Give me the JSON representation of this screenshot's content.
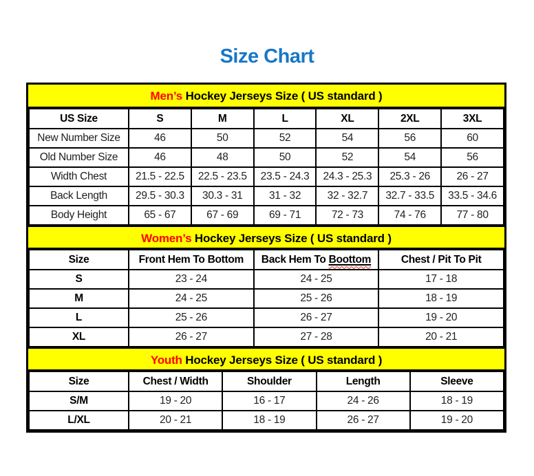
{
  "page": {
    "title": "Size Chart"
  },
  "colors": {
    "title_blue": "#1777c6",
    "accent_red": "#ff0000",
    "band_yellow": "#ffff00",
    "ink": "#1f1f1f",
    "line": "#000000"
  },
  "mens": {
    "band_prefix": "Men’s",
    "band_rest": " Hockey Jerseys Size ( US standard )",
    "headers": [
      "US Size",
      "S",
      "M",
      "L",
      "XL",
      "2XL",
      "3XL"
    ],
    "rows": [
      {
        "label": "New Number Size",
        "values": [
          "46",
          "50",
          "52",
          "54",
          "56",
          "60"
        ]
      },
      {
        "label": "Old Number Size",
        "values": [
          "46",
          "48",
          "50",
          "52",
          "54",
          "56"
        ]
      },
      {
        "label": "Width Chest",
        "values": [
          "21.5 - 22.5",
          "22.5 - 23.5",
          "23.5 - 24.3",
          "24.3 - 25.3",
          "25.3 - 26",
          "26 - 27"
        ]
      },
      {
        "label": "Back Length",
        "values": [
          "29.5 - 30.3",
          "30.3 - 31",
          "31 - 32",
          "32 - 32.7",
          "32.7 - 33.5",
          "33.5 - 34.6"
        ]
      },
      {
        "label": "Body Height",
        "values": [
          "65 - 67",
          "67 - 69",
          "69 - 71",
          "72 - 73",
          "74 - 76",
          "77 - 80"
        ]
      }
    ]
  },
  "womens": {
    "band_prefix": "Women’s",
    "band_rest": " Hockey Jerseys Size ( US standard )",
    "headers": [
      "Size",
      "Front Hem To Bottom",
      "Chest / Pit To Pit"
    ],
    "header_back": {
      "prefix": "Back Hem To ",
      "misspelled": "Boottom"
    },
    "rows": [
      {
        "label": "S",
        "values": [
          "23 - 24",
          "24 - 25",
          "17 - 18"
        ]
      },
      {
        "label": "M",
        "values": [
          "24 - 25",
          "25 - 26",
          "18 - 19"
        ]
      },
      {
        "label": "L",
        "values": [
          "25 - 26",
          "26 - 27",
          "19 - 20"
        ]
      },
      {
        "label": "XL",
        "values": [
          "26 - 27",
          "27 - 28",
          "20 - 21"
        ]
      }
    ]
  },
  "youth": {
    "band_prefix": "Youth",
    "band_rest": " Hockey Jerseys Size ( US standard )",
    "headers": [
      "Size",
      "Chest / Width",
      "Shoulder",
      "Length",
      "Sleeve"
    ],
    "rows": [
      {
        "label": "S/M",
        "values": [
          "19 - 20",
          "16 - 17",
          "24 - 26",
          "18 - 19"
        ]
      },
      {
        "label": "L/XL",
        "values": [
          "20 - 21",
          "18 - 19",
          "26 - 27",
          "19 - 20"
        ]
      }
    ]
  }
}
